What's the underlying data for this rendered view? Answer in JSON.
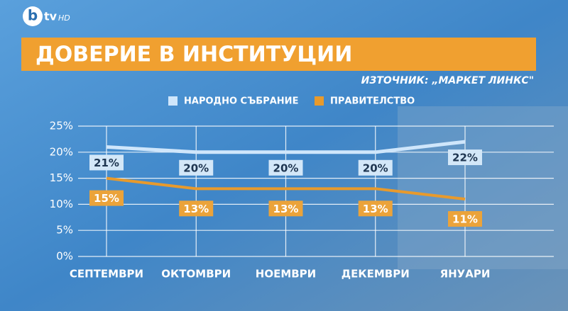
{
  "logo": {
    "b": "b",
    "tv": "tv",
    "hd": "HD"
  },
  "chart_data": {
    "type": "line",
    "title": "ДОВЕРИЕ В ИНСТИТУЦИИ",
    "source": "ИЗТОЧНИК: „МАРКЕТ ЛИНКС\"",
    "categories": [
      "СЕПТЕМВРИ",
      "ОКТОМВРИ",
      "НОЕМВРИ",
      "ДЕКЕМВРИ",
      "ЯНУАРИ"
    ],
    "series": [
      {
        "name": "НАРОДНО СЪБРАНИЕ",
        "color": "#cfe6fb",
        "values": [
          21,
          20,
          20,
          20,
          22
        ],
        "value_labels": [
          "21%",
          "20%",
          "20%",
          "20%",
          "22%"
        ]
      },
      {
        "name": "ПРАВИТЕЛСТВО",
        "color": "#e89a2c",
        "values": [
          15,
          13,
          13,
          13,
          11
        ],
        "value_labels": [
          "15%",
          "13%",
          "13%",
          "13%",
          "11%"
        ]
      }
    ],
    "ylim": [
      0,
      25
    ],
    "yticks": [
      {
        "value": 0,
        "label": "0%"
      },
      {
        "value": 5,
        "label": "5%"
      },
      {
        "value": 10,
        "label": "10%"
      },
      {
        "value": 15,
        "label": "15%"
      },
      {
        "value": 20,
        "label": "20%"
      },
      {
        "value": 25,
        "label": "25%"
      }
    ],
    "grid": true
  }
}
